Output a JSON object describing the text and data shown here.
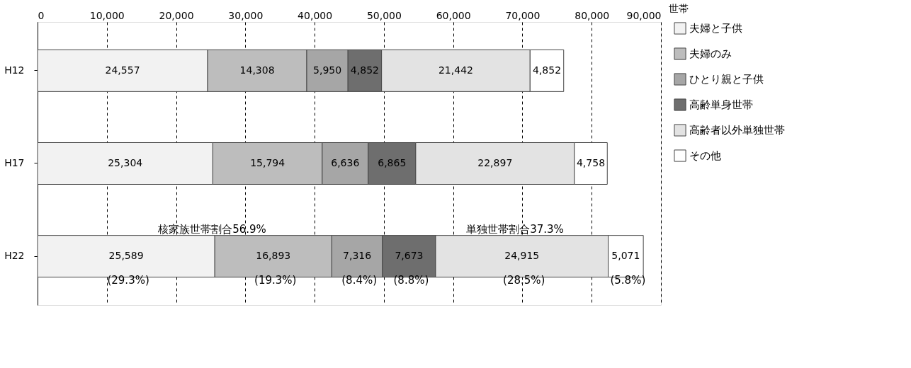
{
  "chart_data": {
    "type": "bar",
    "orientation": "horizontal",
    "stacked": true,
    "xlabel": "世帯",
    "categories": [
      "H12",
      "H17",
      "H22"
    ],
    "series": [
      {
        "name": "夫婦と子供",
        "color": "#f2f2f2",
        "values": [
          24557,
          25304,
          25589
        ],
        "value_labels": [
          "24,557",
          "25,304",
          "25,589"
        ]
      },
      {
        "name": "夫婦のみ",
        "color": "#bdbdbd",
        "values": [
          14308,
          15794,
          16893
        ],
        "value_labels": [
          "14,308",
          "15,794",
          "16,893"
        ]
      },
      {
        "name": "ひとり親と子供",
        "color": "#a6a6a6",
        "values": [
          5950,
          6636,
          7316
        ],
        "value_labels": [
          "5,950",
          "6,636",
          "7,316"
        ]
      },
      {
        "name": "高齢単身世帯",
        "color": "#6e6e6e",
        "values": [
          4852,
          6865,
          7673
        ],
        "value_labels": [
          "4,852",
          "6,865",
          "7,673"
        ]
      },
      {
        "name": "高齢者以外単独世帯",
        "color": "#e3e3e3",
        "values": [
          21442,
          22897,
          24915
        ],
        "value_labels": [
          "21,442",
          "22,897",
          "24,915"
        ]
      },
      {
        "name": "その他",
        "color": "#ffffff",
        "values": [
          4852,
          4758,
          5071
        ],
        "value_labels": [
          "4,852",
          "4,758",
          "5,071"
        ]
      }
    ],
    "xlim": [
      0,
      90000
    ],
    "xticks": [
      {
        "value": 0,
        "label": "0"
      },
      {
        "value": 10000,
        "label": "10,000"
      },
      {
        "value": 20000,
        "label": "20,000"
      },
      {
        "value": 30000,
        "label": "30,000"
      },
      {
        "value": 40000,
        "label": "40,000"
      },
      {
        "value": 50000,
        "label": "50,000"
      },
      {
        "value": 60000,
        "label": "60,000"
      },
      {
        "value": 70000,
        "label": "70,000"
      },
      {
        "value": 80000,
        "label": "80,000"
      },
      {
        "value": 90000,
        "label": "90,000"
      }
    ],
    "grid": "x",
    "legend": "right",
    "annotations": [
      "核家族世帯割合56.9%",
      "単独世帯割合37.3%",
      "(29.3%)",
      "(19.3%)",
      "(8.4%)",
      "(8.8%)",
      "(28.5%)",
      "(5.8%)"
    ]
  }
}
